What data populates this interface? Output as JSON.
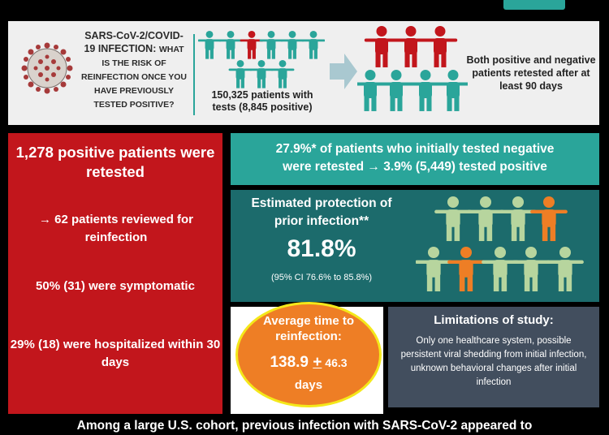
{
  "header": {
    "question_line1": "SARS-CoV-2/COVID-",
    "question_line2": "19 INFECTION: ",
    "question_small_1": "WHAT",
    "question_small_2": "IS THE RISK OF",
    "question_small_3": "REINFECTION ONCE YOU",
    "question_small_4": "HAVE PREVIOUSLY",
    "question_small_5": "TESTED POSITIVE?",
    "patients_with_tests": "150,325 patients with tests (8,845 positive)",
    "retest_info": "Both positive and negative patients retested after at least 90 days"
  },
  "positive_panel": {
    "retested": "1,278 positive patients were retested",
    "reviewed": "→ 62 patients reviewed for reinfection",
    "symptomatic": "50% (31) were symptomatic",
    "hospitalized": "29% (18) were hospitalized within 30 days"
  },
  "negative_banner": {
    "line1": "27.9%* of patients who initially tested negative",
    "line2": "were retested → 3.9% (5,449) tested positive"
  },
  "protection": {
    "title": "Estimated protection of prior infection**",
    "value": "81.8%",
    "ci": "(95% CI 76.6% to 85.8%)"
  },
  "reinfection_time": {
    "title": "Average time to reinfection:",
    "mean": "138.9 ",
    "pm": "+",
    "sd": " 46.3",
    "unit": "days"
  },
  "limitations": {
    "title": "Limitations of study:",
    "text": "Only one healthcare system, possible persistent viral shedding from initial infection, unknown behavioral changes after initial infection"
  },
  "conclusion": "Among a large U.S. cohort, previous infection with SARS-CoV-2 appeared to",
  "colors": {
    "teal": "#2aa59a",
    "dark_teal": "#1c6b6c",
    "red": "#c2161c",
    "orange": "#ee7e25",
    "yellow": "#f4e81a",
    "slate": "#424e5e",
    "light_green": "#b7d59e"
  }
}
